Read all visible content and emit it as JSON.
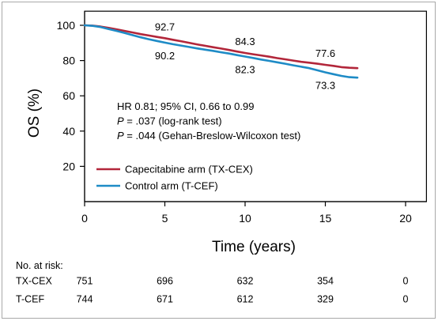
{
  "chart_data": {
    "type": "line",
    "xlabel": "Time (years)",
    "ylabel": "OS (%)",
    "xlim": [
      0,
      21.3
    ],
    "ylim": [
      0,
      108
    ],
    "x_ticks": [
      0,
      5,
      10,
      15,
      20
    ],
    "y_ticks": [
      20,
      40,
      60,
      80,
      100
    ],
    "grid": false,
    "legend": {
      "placement": "bottom-left"
    },
    "series": [
      {
        "name": "Capecitabine arm (TX-CEX)",
        "color": "#b2263a",
        "x": [
          0,
          0.5,
          1,
          1.5,
          2,
          2.5,
          3,
          3.5,
          4,
          4.5,
          5,
          5.5,
          6,
          6.5,
          7,
          7.5,
          8,
          8.5,
          9,
          9.5,
          10,
          10.5,
          11,
          11.5,
          12,
          12.5,
          13,
          13.5,
          14,
          14.5,
          15,
          15.5,
          16,
          16.5,
          17
        ],
        "y": [
          100,
          99.8,
          99.3,
          98.5,
          97.7,
          96.8,
          95.9,
          95.0,
          94.2,
          93.4,
          92.7,
          91.8,
          91.0,
          90.1,
          89.2,
          88.4,
          87.6,
          86.8,
          86.0,
          85.1,
          84.3,
          83.6,
          82.9,
          82.2,
          81.4,
          80.7,
          80.0,
          79.3,
          78.8,
          78.2,
          77.6,
          77.0,
          76.3,
          75.9,
          75.7
        ]
      },
      {
        "name": "Control arm (T-CEF)",
        "color": "#1e8bc6",
        "x": [
          0,
          0.5,
          1,
          1.5,
          2,
          2.5,
          3,
          3.5,
          4,
          4.5,
          5,
          5.5,
          6,
          6.5,
          7,
          7.5,
          8,
          8.5,
          9,
          9.5,
          10,
          10.5,
          11,
          11.5,
          12,
          12.5,
          13,
          13.5,
          14,
          14.5,
          15,
          15.5,
          16,
          16.5,
          17
        ],
        "y": [
          100,
          99.7,
          99.0,
          97.9,
          96.8,
          95.6,
          94.4,
          93.2,
          92.1,
          91.1,
          90.2,
          89.3,
          88.5,
          87.7,
          86.9,
          86.2,
          85.5,
          84.7,
          84.0,
          83.1,
          82.3,
          81.5,
          80.6,
          79.8,
          79.0,
          78.2,
          77.3,
          76.5,
          75.7,
          74.5,
          73.3,
          72.3,
          71.3,
          70.6,
          70.3
        ]
      }
    ],
    "annotations": [
      {
        "text": "92.7",
        "x": 5,
        "y": 92.7,
        "series_index": 0
      },
      {
        "text": "90.2",
        "x": 5,
        "y": 90.2,
        "series_index": 1
      },
      {
        "text": "84.3",
        "x": 10,
        "y": 84.3,
        "series_index": 0
      },
      {
        "text": "82.3",
        "x": 10,
        "y": 82.3,
        "series_index": 1
      },
      {
        "text": "77.6",
        "x": 15,
        "y": 77.6,
        "series_index": 0
      },
      {
        "text": "73.3",
        "x": 15,
        "y": 73.3,
        "series_index": 1
      }
    ],
    "stats": [
      {
        "text": "HR 0.81; 95% CI, 0.66 to 0.99"
      },
      {
        "italic": "P",
        "text": " = .037 (log-rank test)"
      },
      {
        "italic": "P",
        "text": " = .044 (Gehan-Breslow-Wilcoxon test)"
      }
    ]
  },
  "risk_table": {
    "header": "No. at risk:",
    "times": [
      0,
      5,
      10,
      15,
      20
    ],
    "rows": [
      {
        "label": "TX-CEX",
        "values": [
          "751",
          "696",
          "632",
          "354",
          "0"
        ]
      },
      {
        "label": "T-CEF",
        "values": [
          "744",
          "671",
          "612",
          "329",
          "0"
        ]
      }
    ]
  }
}
